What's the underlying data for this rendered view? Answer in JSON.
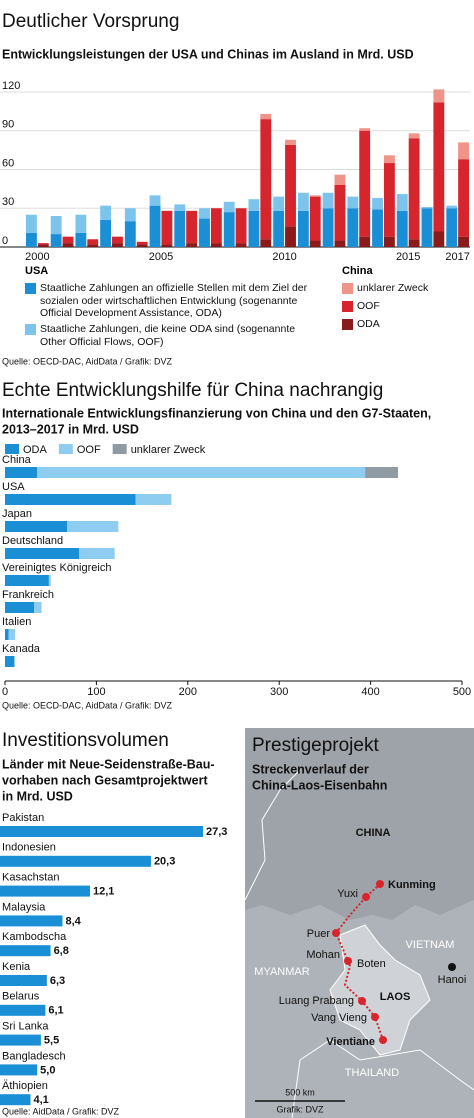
{
  "chart_data": [
    {
      "type": "bar",
      "title": "Deutlicher Vorsprung",
      "subtitle": "Entwicklungsleistungen der USA und Chinas im Ausland in Mrd. USD",
      "categories": [
        "2000",
        null,
        null,
        null,
        null,
        "2005",
        null,
        null,
        null,
        null,
        "2010",
        null,
        null,
        null,
        null,
        "2015",
        null,
        "2017"
      ],
      "ylim": [
        0,
        120
      ],
      "yticks": [
        0,
        30,
        60,
        90,
        120
      ],
      "grid": true,
      "groups": [
        {
          "name": "USA",
          "series": [
            {
              "name": "Staatliche Zahlungen an offizielle Stellen mit dem Ziel der sozialen oder wirtschaftlichen Entwicklung (sogenannte Official Development Assistance, ODA)",
              "color": "#1a8fd6",
              "values": [
                11,
                10,
                11,
                21,
                20,
                32,
                28,
                22,
                27,
                28,
                28,
                28,
                30,
                30,
                29,
                28,
                30,
                30
              ]
            },
            {
              "name": "Staatliche Zahlungen, die keine ODA sind (sogenannte Other Official Flows, OOF)",
              "color": "#7cc4ec",
              "values": [
                14,
                14,
                14,
                11,
                10,
                8,
                5,
                8,
                8,
                9,
                11,
                14,
                12,
                9,
                9,
                13,
                1,
                2
              ]
            }
          ]
        },
        {
          "name": "China",
          "series": [
            {
              "name": "ODA",
              "color": "#8b1a1a",
              "values": [
                2,
                3,
                2,
                3,
                2,
                2,
                3,
                3,
                3,
                6,
                16,
                5,
                5,
                8,
                8,
                6,
                12,
                8
              ]
            },
            {
              "name": "OOF",
              "color": "#d7252d",
              "values": [
                1,
                5,
                4,
                5,
                2,
                26,
                25,
                27,
                27,
                93,
                63,
                34,
                43,
                82,
                57,
                78,
                100,
                60
              ]
            },
            {
              "name": "unklarer Zweck",
              "color": "#f0948a",
              "values": [
                0,
                0,
                0,
                0,
                0,
                0,
                0,
                0,
                0,
                4,
                4,
                1,
                8,
                2,
                6,
                4,
                10,
                13
              ]
            }
          ]
        }
      ],
      "source": "Quelle: OECD-DAC, AidData / Grafik: DVZ"
    },
    {
      "type": "barh",
      "title": "Echte Entwicklungshilfe für China nachrangig",
      "subtitle": [
        "Internationale Entwicklungsfinanzierung von China und den G7-Staaten,",
        "2013–2017 in Mrd. USD"
      ],
      "categories": [
        "China",
        "USA",
        "Japan",
        "Deutschland",
        "Vereinigtes Königreich",
        "Frankreich",
        "Italien",
        "Kanada"
      ],
      "series": [
        {
          "name": "ODA",
          "color": "#1a8fd6",
          "values": [
            35,
            143,
            68,
            81,
            48,
            32,
            4,
            10
          ]
        },
        {
          "name": "OOF",
          "color": "#8fcdf0",
          "values": [
            359,
            39,
            56,
            39,
            2,
            8,
            7,
            1
          ]
        },
        {
          "name": "unklarer Zweck",
          "color": "#8f9aa3",
          "values": [
            36,
            null,
            null,
            null,
            null,
            null,
            null,
            null
          ]
        }
      ],
      "xlim": [
        0,
        500
      ],
      "xticks": [
        0,
        100,
        200,
        300,
        400,
        500
      ],
      "source": "Quelle: OECD-DAC, AidData / Grafik: DVZ"
    },
    {
      "type": "barh",
      "title": "Investitionsvolumen",
      "subtitle": [
        "Länder mit Neue-Seidenstraße-Bau-",
        "vorhaben nach Gesamtprojektwert",
        "in Mrd. USD"
      ],
      "categories": [
        "Pakistan",
        "Indonesien",
        "Kasachstan",
        "Malaysia",
        "Kambodscha",
        "Kenia",
        "Belarus",
        "Sri Lanka",
        "Bangladesch",
        "Äthiopien"
      ],
      "values": [
        27.3,
        20.3,
        12.1,
        8.4,
        6.8,
        6.3,
        6.1,
        5.5,
        5.0,
        4.1
      ],
      "value_labels": [
        "27,3",
        "20,3",
        "12,1",
        "8,4",
        "6,8",
        "6,3",
        "6,1",
        "5,5",
        "5,0",
        "4,1"
      ],
      "color": "#1a8fd6",
      "source": "Quelle: AidData / Grafik: DVZ"
    }
  ],
  "map": {
    "title": "Prestigeprojekt",
    "subtitle": [
      "Streckenverlauf der",
      "China-Laos-Eisenbahn"
    ],
    "countries": [
      "CHINA",
      "VIETNAM",
      "MYANMAR",
      "LAOS",
      "THAILAND"
    ],
    "places": [
      "Kunming",
      "Yuxi",
      "Puer",
      "Mohan",
      "Boten",
      "Luang Prabang",
      "Vang Vieng",
      "Vientiane",
      "Hanoi"
    ],
    "scale": "500 km",
    "credit": "Grafik: DVZ"
  }
}
